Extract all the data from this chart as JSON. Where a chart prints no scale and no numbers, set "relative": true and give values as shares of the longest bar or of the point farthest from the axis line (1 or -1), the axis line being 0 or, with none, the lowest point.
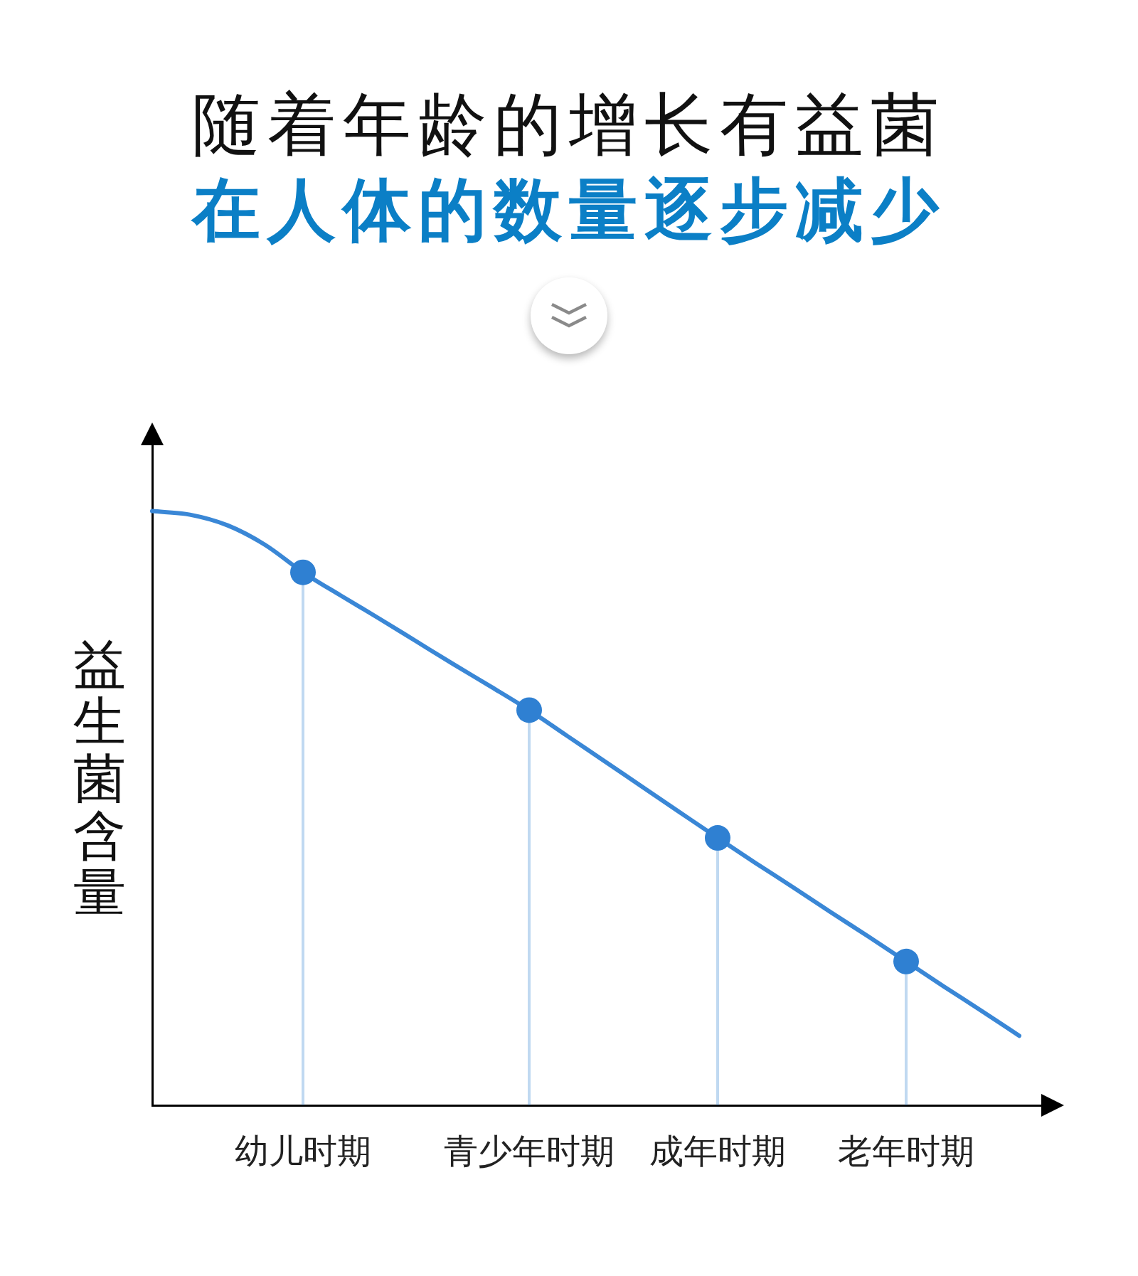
{
  "chart_data": {
    "type": "line",
    "title": "随着年龄的增长有益菌",
    "subtitle": "在人体的数量逐步减少",
    "ylabel": "益生菌含量",
    "categories": [
      null,
      null,
      null,
      null,
      "幼儿时期",
      null,
      null,
      null,
      null,
      null,
      "青少年时期",
      null,
      null,
      null,
      null,
      "成年时期",
      null,
      null,
      null,
      null,
      "老年时期",
      null,
      null,
      null,
      null
    ],
    "relative": true,
    "tick_labels": "x",
    "series": [
      {
        "color": "#3a87d6",
        "marker": "none",
        "values": [
          1,
          0.994,
          0.976,
          0.943,
          0.897,
          0.858,
          0.82,
          0.781,
          0.742,
          0.704,
          0.665,
          0.622,
          0.579,
          0.536,
          0.493,
          0.45,
          0.408,
          0.367,
          0.325,
          0.284,
          0.242,
          0.2,
          0.159,
          0.117,
          null
        ]
      },
      {
        "type": "lollipop",
        "color": "#2f80d2",
        "marker": "circle",
        "values": [
          null,
          null,
          null,
          null,
          0.897,
          null,
          null,
          null,
          null,
          null,
          0.665,
          null,
          null,
          null,
          null,
          0.45,
          null,
          null,
          null,
          null,
          0.242,
          null,
          null,
          null,
          null
        ]
      }
    ]
  }
}
